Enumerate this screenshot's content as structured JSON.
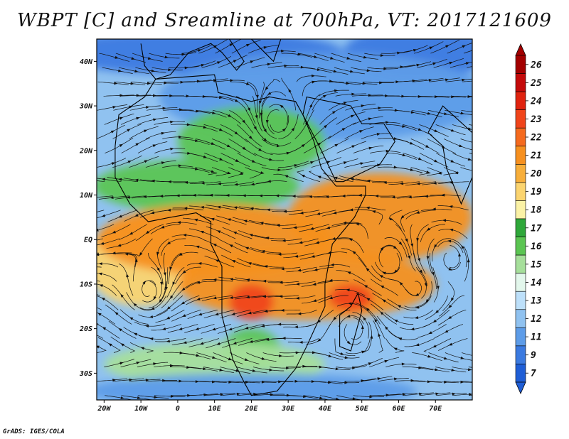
{
  "title": "WBPT [C] and Sreamline at 700hPa, VT: 2017121609",
  "credit": "GrADS: IGES/COLA",
  "map": {
    "lon_range": [
      -22,
      80
    ],
    "lat_range": [
      -36,
      45
    ],
    "lat_ticks": [
      {
        "value": 40,
        "label": "40N"
      },
      {
        "value": 30,
        "label": "30N"
      },
      {
        "value": 20,
        "label": "20N"
      },
      {
        "value": 10,
        "label": "10N"
      },
      {
        "value": 0,
        "label": "EQ"
      },
      {
        "value": -10,
        "label": "10S"
      },
      {
        "value": -20,
        "label": "20S"
      },
      {
        "value": -30,
        "label": "30S"
      }
    ],
    "lon_ticks": [
      {
        "value": -20,
        "label": "20W"
      },
      {
        "value": -10,
        "label": "10W"
      },
      {
        "value": 0,
        "label": "0"
      },
      {
        "value": 10,
        "label": "10E"
      },
      {
        "value": 20,
        "label": "20E"
      },
      {
        "value": 30,
        "label": "30E"
      },
      {
        "value": 40,
        "label": "40E"
      },
      {
        "value": 50,
        "label": "50E"
      },
      {
        "value": 60,
        "label": "60E"
      },
      {
        "value": 70,
        "label": "70E"
      }
    ]
  },
  "colorbar": {
    "labels": [
      "26",
      "25",
      "24",
      "23",
      "22",
      "21",
      "20",
      "19",
      "18",
      "17",
      "16",
      "15",
      "14",
      "13",
      "12",
      "11",
      "9",
      "7"
    ],
    "colors": [
      "#a30000",
      "#c40a0a",
      "#e0230f",
      "#f0441a",
      "#f56a1e",
      "#f6901f",
      "#f7ae3a",
      "#fbd46f",
      "#fbf2a6",
      "#2fa83a",
      "#5bc552",
      "#a6df9b",
      "#e3f7ec",
      "#bde0fa",
      "#90c2f0",
      "#5d9ce8",
      "#3b7ae0",
      "#1f5ed6"
    ],
    "top_color": "#a30000",
    "bottom_color": "#1f5ed6"
  },
  "field": {
    "base_color": "#90c2f0",
    "blobs": [
      {
        "lon": 5,
        "lat": 42,
        "rx": 40,
        "ry": 5,
        "color": "#3b7ae0"
      },
      {
        "lon": 65,
        "lat": 42,
        "rx": 20,
        "ry": 6,
        "color": "#3b7ae0"
      },
      {
        "lon": 40,
        "lat": 32,
        "rx": 45,
        "ry": 10,
        "color": "#5d9ce8"
      },
      {
        "lon": 20,
        "lat": 22,
        "rx": 20,
        "ry": 8,
        "color": "#5bc552"
      },
      {
        "lon": 5,
        "lat": 12,
        "rx": 28,
        "ry": 6,
        "color": "#5bc552"
      },
      {
        "lon": -10,
        "lat": -5,
        "rx": 15,
        "ry": 10,
        "color": "#fbd46f"
      },
      {
        "lon": 10,
        "lat": 0,
        "rx": 32,
        "ry": 8,
        "color": "#f6901f"
      },
      {
        "lon": 55,
        "lat": 5,
        "rx": 25,
        "ry": 10,
        "color": "#f6901f"
      },
      {
        "lon": 35,
        "lat": -10,
        "rx": 35,
        "ry": 8,
        "color": "#f6901f"
      },
      {
        "lon": 20,
        "lat": -14,
        "rx": 6,
        "ry": 4,
        "color": "#f0441a"
      },
      {
        "lon": 47,
        "lat": -13,
        "rx": 6,
        "ry": 3,
        "color": "#f0441a"
      },
      {
        "lon": 20,
        "lat": -25,
        "rx": 8,
        "ry": 5,
        "color": "#5bc552"
      },
      {
        "lon": 10,
        "lat": -28,
        "rx": 30,
        "ry": 5,
        "color": "#a6df9b"
      },
      {
        "lon": 20,
        "lat": -34,
        "rx": 45,
        "ry": 4,
        "color": "#5d9ce8"
      }
    ]
  }
}
